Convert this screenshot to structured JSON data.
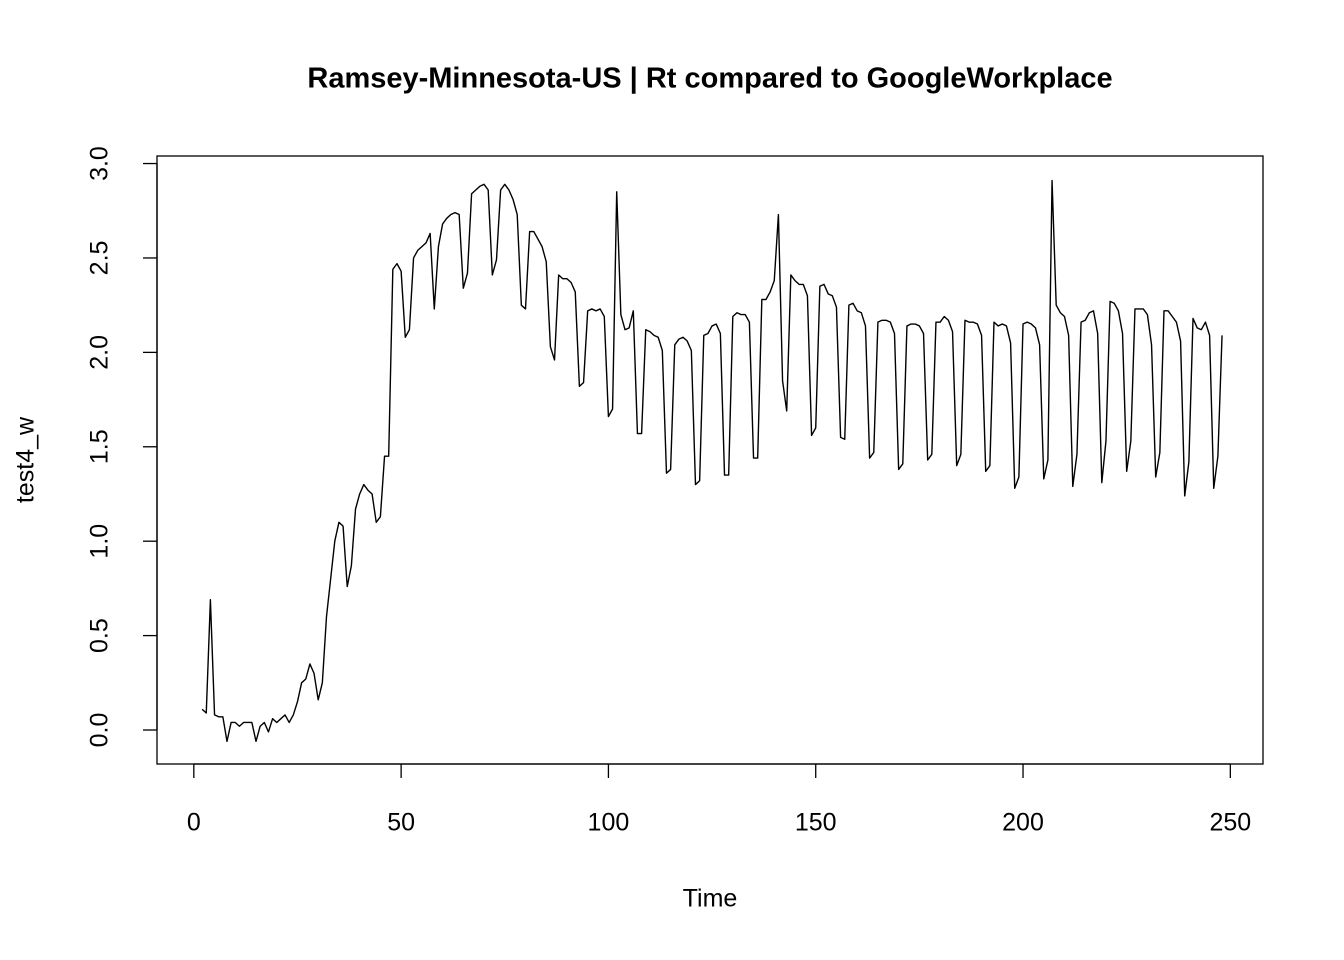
{
  "chart_data": {
    "type": "line",
    "title": "Ramsey-Minnesota-US | Rt compared to GoogleWorkplace",
    "x_label": "Time",
    "y_label": "test4_w",
    "color": "#000000",
    "x": [
      2,
      3,
      4,
      5,
      6,
      7,
      8,
      9,
      10,
      11,
      12,
      13,
      14,
      15,
      16,
      17,
      18,
      19,
      20,
      21,
      22,
      23,
      24,
      25,
      26,
      27,
      28,
      29,
      30,
      31,
      32,
      33,
      34,
      35,
      36,
      37,
      38,
      39,
      40,
      41,
      42,
      43,
      44,
      45,
      46,
      47,
      48,
      49,
      50,
      51,
      52,
      53,
      54,
      55,
      56,
      57,
      58,
      59,
      60,
      61,
      62,
      63,
      64,
      65,
      66,
      67,
      68,
      69,
      70,
      71,
      72,
      73,
      74,
      75,
      76,
      77,
      78,
      79,
      80,
      81,
      82,
      83,
      84,
      85,
      86,
      87,
      88,
      89,
      90,
      91,
      92,
      93,
      94,
      95,
      96,
      97,
      98,
      99,
      100,
      101,
      102,
      103,
      104,
      105,
      106,
      107,
      108,
      109,
      110,
      111,
      112,
      113,
      114,
      115,
      116,
      117,
      118,
      119,
      120,
      121,
      122,
      123,
      124,
      125,
      126,
      127,
      128,
      129,
      130,
      131,
      132,
      133,
      134,
      135,
      136,
      137,
      138,
      139,
      140,
      141,
      142,
      143,
      144,
      145,
      146,
      147,
      148,
      149,
      150,
      151,
      152,
      153,
      154,
      155,
      156,
      157,
      158,
      159,
      160,
      161,
      162,
      163,
      164,
      165,
      166,
      167,
      168,
      169,
      170,
      171,
      172,
      173,
      174,
      175,
      176,
      177,
      178,
      179,
      180,
      181,
      182,
      183,
      184,
      185,
      186,
      187,
      188,
      189,
      190,
      191,
      192,
      193,
      194,
      195,
      196,
      197,
      198,
      199,
      200,
      201,
      202,
      203,
      204,
      205,
      206,
      207,
      208,
      209,
      210,
      211,
      212,
      213,
      214,
      215,
      216,
      217,
      218,
      219,
      220,
      221,
      222,
      223,
      224,
      225,
      226,
      227,
      228,
      229,
      230,
      231,
      232,
      233,
      234,
      235,
      236,
      237,
      238,
      239,
      240,
      241,
      242,
      243,
      244,
      245,
      246,
      247,
      248
    ],
    "values": [
      0.11,
      0.09,
      0.69,
      0.08,
      0.07,
      0.07,
      -0.06,
      0.04,
      0.04,
      0.02,
      0.04,
      0.04,
      0.04,
      -0.06,
      0.02,
      0.04,
      -0.01,
      0.06,
      0.04,
      0.06,
      0.08,
      0.04,
      0.08,
      0.15,
      0.25,
      0.27,
      0.35,
      0.3,
      0.16,
      0.25,
      0.6,
      0.8,
      1.0,
      1.1,
      1.08,
      0.76,
      0.87,
      1.17,
      1.25,
      1.3,
      1.27,
      1.25,
      1.1,
      1.13,
      1.45,
      1.45,
      2.44,
      2.47,
      2.43,
      2.08,
      2.12,
      2.5,
      2.54,
      2.56,
      2.58,
      2.63,
      2.23,
      2.56,
      2.68,
      2.71,
      2.73,
      2.74,
      2.73,
      2.34,
      2.42,
      2.84,
      2.86,
      2.88,
      2.89,
      2.86,
      2.41,
      2.49,
      2.86,
      2.89,
      2.86,
      2.81,
      2.73,
      2.25,
      2.23,
      2.64,
      2.64,
      2.6,
      2.56,
      2.48,
      2.03,
      1.96,
      2.41,
      2.39,
      2.39,
      2.37,
      2.32,
      1.82,
      1.84,
      2.22,
      2.23,
      2.22,
      2.23,
      2.19,
      1.66,
      1.7,
      2.85,
      2.2,
      2.12,
      2.13,
      2.22,
      1.57,
      1.57,
      2.12,
      2.11,
      2.09,
      2.08,
      2.01,
      1.36,
      1.38,
      2.04,
      2.07,
      2.08,
      2.06,
      2.01,
      1.3,
      1.32,
      2.09,
      2.1,
      2.14,
      2.15,
      2.1,
      1.35,
      1.35,
      2.19,
      2.21,
      2.2,
      2.2,
      2.16,
      1.44,
      1.44,
      2.28,
      2.28,
      2.32,
      2.38,
      2.73,
      1.85,
      1.69,
      2.41,
      2.38,
      2.36,
      2.36,
      2.3,
      1.56,
      1.6,
      2.35,
      2.36,
      2.31,
      2.3,
      2.24,
      1.55,
      1.54,
      2.25,
      2.26,
      2.22,
      2.21,
      2.14,
      1.44,
      1.47,
      2.16,
      2.17,
      2.17,
      2.16,
      2.1,
      1.38,
      1.41,
      2.14,
      2.15,
      2.15,
      2.14,
      2.1,
      1.43,
      1.46,
      2.16,
      2.16,
      2.19,
      2.17,
      2.11,
      1.4,
      1.46,
      2.17,
      2.16,
      2.16,
      2.15,
      2.09,
      1.37,
      1.4,
      2.16,
      2.14,
      2.15,
      2.14,
      2.05,
      1.28,
      1.34,
      2.15,
      2.16,
      2.15,
      2.13,
      2.04,
      1.33,
      1.43,
      2.91,
      2.25,
      2.21,
      2.19,
      2.09,
      1.29,
      1.46,
      2.16,
      2.17,
      2.21,
      2.22,
      2.1,
      1.31,
      1.53,
      2.27,
      2.26,
      2.22,
      2.1,
      1.37,
      1.53,
      2.23,
      2.23,
      2.23,
      2.2,
      2.04,
      1.34,
      1.47,
      2.22,
      2.22,
      2.19,
      2.16,
      2.06,
      1.24,
      1.42,
      2.18,
      2.13,
      2.12,
      2.16,
      2.09,
      1.28,
      1.45,
      2.09
    ],
    "xlim": [
      -8.88,
      257.88
    ],
    "ylim": [
      -0.18,
      3.04
    ],
    "xticks": [
      0,
      50,
      100,
      150,
      200,
      250
    ],
    "yticks": [
      {
        "value": 0,
        "label": "0.0"
      },
      {
        "value": 0.5,
        "label": "0.5"
      },
      {
        "value": 1,
        "label": "1.0"
      },
      {
        "value": 1.5,
        "label": "1.5"
      },
      {
        "value": 2,
        "label": "2.0"
      },
      {
        "value": 2.5,
        "label": "2.5"
      },
      {
        "value": 3,
        "label": "3.0"
      }
    ]
  }
}
